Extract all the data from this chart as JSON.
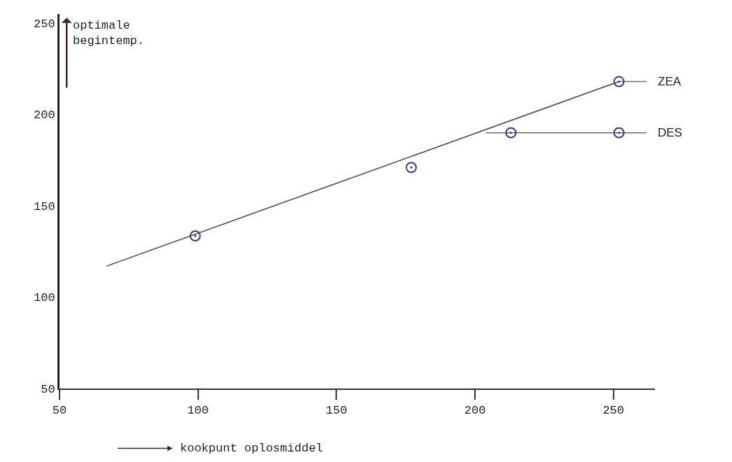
{
  "chart_data": {
    "type": "line",
    "xlabel": "kookpunt oplosmiddel",
    "ylabel": "optimale begintemp.",
    "xlim": [
      50,
      265
    ],
    "xticks": [
      50,
      100,
      150,
      200,
      250
    ],
    "ylim": [
      50,
      255
    ],
    "yticks": [
      50,
      100,
      150,
      200,
      250
    ],
    "legend": false,
    "series": [
      {
        "color": "#4a3f46",
        "x": [
          67,
          252
        ],
        "values": [
          117,
          218
        ]
      },
      {
        "name": "ZEA",
        "color": "#6a6a6a",
        "x": [
          252,
          262
        ],
        "values": [
          218,
          218
        ]
      },
      {
        "name": "DES",
        "color": "#6a6a6a",
        "x": [
          204,
          262
        ],
        "values": [
          190,
          190
        ]
      },
      {
        "type": "scatter",
        "color": "#3a3a8a",
        "marker": "circle",
        "x": [
          99,
          177,
          213,
          252,
          252
        ],
        "values": [
          133.5,
          171,
          190,
          190,
          218
        ]
      }
    ]
  }
}
